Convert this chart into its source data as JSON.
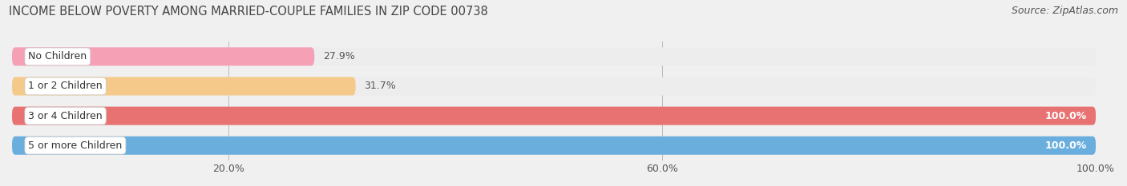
{
  "title": "INCOME BELOW POVERTY AMONG MARRIED-COUPLE FAMILIES IN ZIP CODE 00738",
  "source": "Source: ZipAtlas.com",
  "categories": [
    "No Children",
    "1 or 2 Children",
    "3 or 4 Children",
    "5 or more Children"
  ],
  "values": [
    27.9,
    31.7,
    100.0,
    100.0
  ],
  "bar_colors": [
    "#f5a0b5",
    "#f5c98a",
    "#e87272",
    "#6aaede"
  ],
  "bg_colors": [
    "#ededee",
    "#ededee",
    "#ededee",
    "#ededee"
  ],
  "x_ticks": [
    20,
    60,
    100
  ],
  "x_tick_labels": [
    "20.0%",
    "60.0%",
    "100.0%"
  ],
  "xlim": [
    0,
    100
  ],
  "title_fontsize": 10.5,
  "source_fontsize": 9,
  "bar_label_fontsize": 9,
  "tick_fontsize": 9,
  "background_color": "#f0f0f0",
  "bar_height": 0.62,
  "bar_spacing": 1.0
}
